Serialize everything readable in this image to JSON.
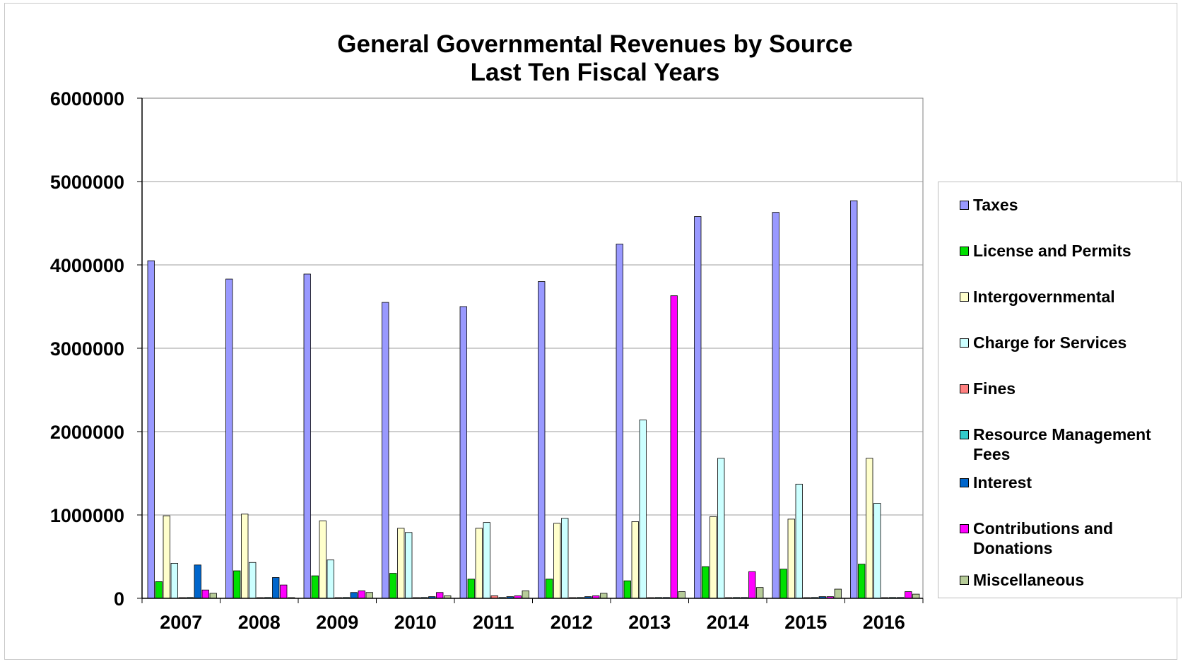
{
  "chart_data": {
    "type": "bar",
    "title": [
      "General Governmental Revenues by Source",
      "Last Ten Fiscal Years"
    ],
    "xlabel": "",
    "ylabel": "",
    "categories": [
      "2007",
      "2008",
      "2009",
      "2010",
      "2011",
      "2012",
      "2013",
      "2014",
      "2015",
      "2016"
    ],
    "ylim": [
      0,
      6000000
    ],
    "yticks": [
      "0",
      "1000000",
      "2000000",
      "3000000",
      "4000000",
      "5000000",
      "6000000"
    ],
    "grid": true,
    "legend_position": "right",
    "series": [
      {
        "name": "Taxes",
        "color": "#9999FF",
        "values": [
          4050000,
          3830000,
          3890000,
          3550000,
          3500000,
          3800000,
          4250000,
          4580000,
          4630000,
          4770000
        ]
      },
      {
        "name": "License and Permits",
        "color": "#00E000",
        "values": [
          200000,
          330000,
          270000,
          300000,
          230000,
          230000,
          210000,
          380000,
          350000,
          410000
        ]
      },
      {
        "name": "Intergovernmental",
        "color": "#FFFFCC",
        "values": [
          990000,
          1010000,
          930000,
          840000,
          840000,
          900000,
          920000,
          980000,
          950000,
          1680000
        ]
      },
      {
        "name": "Charge for Services",
        "color": "#CCFFFF",
        "values": [
          420000,
          430000,
          460000,
          790000,
          910000,
          960000,
          2140000,
          1680000,
          1370000,
          1140000
        ]
      },
      {
        "name": "Fines",
        "color": "#FF8080",
        "values": [
          5000,
          5000,
          5000,
          5000,
          30000,
          5000,
          5000,
          5000,
          5000,
          5000
        ]
      },
      {
        "name": "Resource Management Fees",
        "color": "#33CCCC",
        "values": [
          10000,
          10000,
          10000,
          10000,
          10000,
          10000,
          10000,
          10000,
          10000,
          10000
        ]
      },
      {
        "name": "Interest",
        "color": "#0066CC",
        "values": [
          400000,
          250000,
          70000,
          20000,
          20000,
          20000,
          10000,
          10000,
          20000,
          10000
        ]
      },
      {
        "name": "Contributions and Donations",
        "color": "#FF00FF",
        "values": [
          100000,
          160000,
          90000,
          70000,
          30000,
          30000,
          3630000,
          320000,
          20000,
          80000
        ]
      },
      {
        "name": "Miscellaneous",
        "color": "#B7CC99",
        "values": [
          60000,
          5000,
          70000,
          30000,
          90000,
          60000,
          80000,
          130000,
          110000,
          50000
        ]
      }
    ]
  }
}
